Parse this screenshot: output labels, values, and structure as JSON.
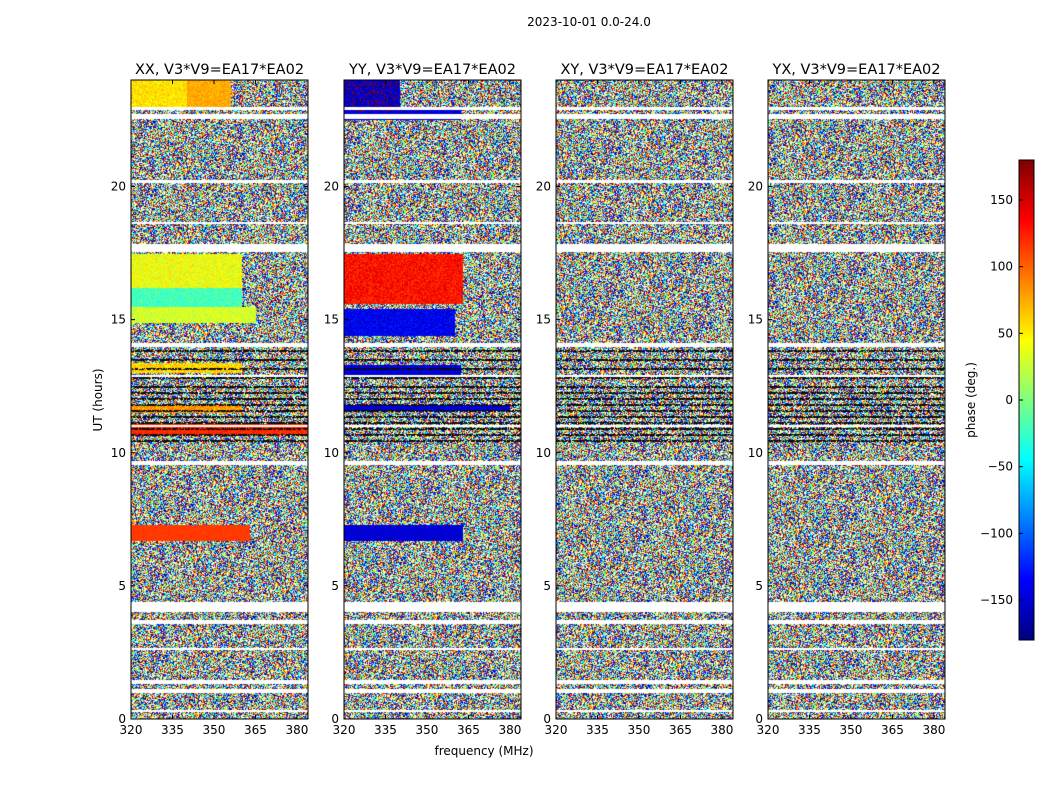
{
  "figure": {
    "suptitle": "2023-10-01 0.0-24.0",
    "xlabel": "frequency (MHz)",
    "ylabel": "UT (hours)"
  },
  "chart_data": {
    "type": "heatmap",
    "panels": [
      {
        "title": "XX, V3*V9=EA17*EA02",
        "pattern": "xx"
      },
      {
        "title": "YY, V3*V9=EA17*EA02",
        "pattern": "yy"
      },
      {
        "title": "XY, V3*V9=EA17*EA02",
        "pattern": "noise"
      },
      {
        "title": "YX, V3*V9=EA17*EA02",
        "pattern": "noise"
      }
    ],
    "x": {
      "range": [
        320,
        384
      ],
      "ticks": [
        320,
        335,
        350,
        365,
        380
      ],
      "tick_labels": [
        "320",
        "335",
        "350",
        "365",
        "380"
      ]
    },
    "y": {
      "range": [
        0,
        24
      ],
      "ticks": [
        0,
        5,
        10,
        15,
        20
      ],
      "tick_labels": [
        "0",
        "5",
        "10",
        "15",
        "20"
      ]
    },
    "colorbar": {
      "label": "phase (deg.)",
      "range": [
        -180,
        180
      ],
      "ticks": [
        150,
        100,
        50,
        0,
        -50,
        -100,
        -150
      ],
      "tick_labels": [
        "150",
        "100",
        "50",
        "0",
        "−50",
        "−100",
        "−150"
      ],
      "colormap": "jet"
    },
    "flagged_gaps_hours": [
      [
        0.3,
        0.35
      ],
      [
        1.0,
        1.15
      ],
      [
        1.35,
        1.5
      ],
      [
        2.6,
        2.7
      ],
      [
        3.6,
        3.75
      ],
      [
        4.05,
        4.4
      ],
      [
        9.55,
        9.7
      ],
      [
        11.0,
        11.05
      ],
      [
        12.85,
        12.95
      ],
      [
        14.0,
        14.15
      ],
      [
        17.55,
        17.85
      ],
      [
        18.6,
        18.7
      ],
      [
        20.15,
        20.25
      ],
      [
        22.55,
        22.75
      ],
      [
        22.9,
        23.0
      ]
    ]
  },
  "colors": {
    "background": "#ffffff",
    "axes": "#000000",
    "flagged": "#ffffff"
  }
}
